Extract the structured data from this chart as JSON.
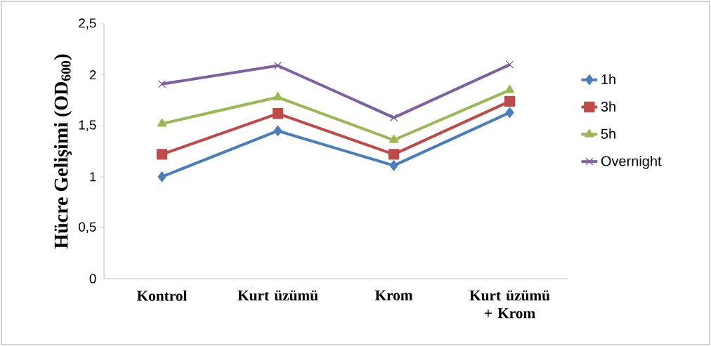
{
  "chart_data": {
    "type": "line",
    "ylabel": "Hücre Gelişimi (OD$_{600}$)",
    "categories": [
      "Kontrol",
      "Kurt üzümü",
      "Krom",
      "Kurt üzümü + Krom"
    ],
    "series": [
      {
        "name": "1h",
        "color": "#4a7ebb",
        "marker": "diamond",
        "values": [
          1.0,
          1.45,
          1.11,
          1.63
        ]
      },
      {
        "name": "3h",
        "color": "#be4b48",
        "marker": "square",
        "values": [
          1.22,
          1.62,
          1.22,
          1.74
        ]
      },
      {
        "name": "5h",
        "color": "#98b954",
        "marker": "triangle",
        "values": [
          1.52,
          1.78,
          1.36,
          1.85
        ]
      },
      {
        "name": "Overnight",
        "color": "#7d60a0",
        "marker": "cross",
        "values": [
          1.91,
          2.09,
          1.58,
          2.1
        ]
      }
    ],
    "ylim": [
      0,
      2.5
    ],
    "yticks": [
      0,
      {
        "value": 0.5,
        "label": "0,5"
      },
      1,
      {
        "value": 1.5,
        "label": "1,5"
      },
      2,
      {
        "value": 2.5,
        "label": "2,5"
      }
    ],
    "grid": false,
    "legend": "right",
    "line_style": "solid"
  }
}
